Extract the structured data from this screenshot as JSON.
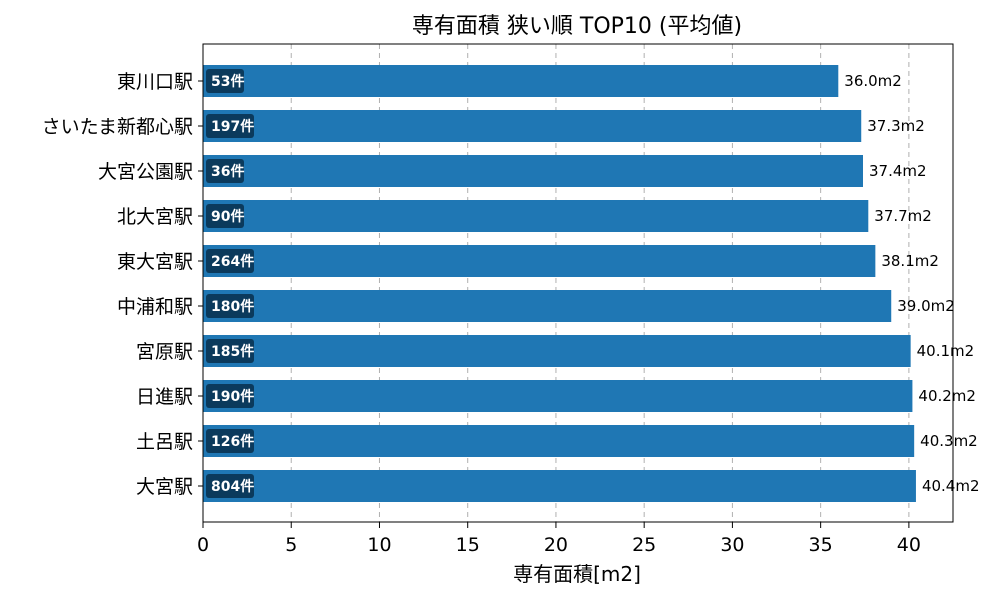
{
  "chart_data": {
    "type": "bar",
    "orientation": "horizontal",
    "title": "専有面積 狭い順 TOP10 (平均値)",
    "xlabel": "専有面積[m2]",
    "ylabel": "",
    "xlim": [
      0,
      42.5
    ],
    "xticks": [
      0,
      5,
      10,
      15,
      20,
      25,
      30,
      35,
      40
    ],
    "grid": "x-dashed",
    "categories": [
      "東川口駅",
      "さいたま新都心駅",
      "大宮公園駅",
      "北大宮駅",
      "東大宮駅",
      "中浦和駅",
      "宮原駅",
      "日進駅",
      "土呂駅",
      "大宮駅"
    ],
    "values": [
      36.0,
      37.3,
      37.4,
      37.7,
      38.1,
      39.0,
      40.1,
      40.2,
      40.3,
      40.4
    ],
    "value_labels": [
      "36.0m2",
      "37.3m2",
      "37.4m2",
      "37.7m2",
      "38.1m2",
      "39.0m2",
      "40.1m2",
      "40.2m2",
      "40.3m2",
      "40.4m2"
    ],
    "counts": [
      53,
      197,
      36,
      90,
      264,
      180,
      185,
      190,
      126,
      804
    ],
    "count_labels": [
      "53件",
      "197件",
      "36件",
      "90件",
      "264件",
      "180件",
      "185件",
      "190件",
      "126件",
      "804件"
    ],
    "bar_color": "#1f77b4",
    "count_badge_color": "#0b3a5c"
  }
}
